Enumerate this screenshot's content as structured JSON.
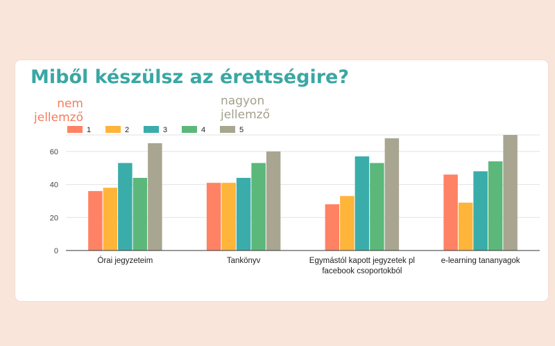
{
  "header": {
    "title": "Miből készülsz az érettségire?",
    "note_low": [
      "nem",
      "jellemző"
    ],
    "note_high": [
      "nagyon",
      "jellemző"
    ]
  },
  "chart_data": {
    "type": "bar",
    "title": "Miből készülsz az érettségire?",
    "categories": [
      [
        "Órai jegyzeteim"
      ],
      [
        "Tankönyv"
      ],
      [
        "Egymástól kapott jegyzetek pl",
        "facebook csoportokból"
      ],
      [
        "e-learning tananyagok"
      ]
    ],
    "series": [
      {
        "name": "1",
        "color": "#ff8264",
        "values": [
          36,
          41,
          28,
          46
        ]
      },
      {
        "name": "2",
        "color": "#ffb43a",
        "values": [
          38,
          41,
          33,
          29
        ]
      },
      {
        "name": "3",
        "color": "#3aadaa",
        "values": [
          53,
          44,
          57,
          48
        ]
      },
      {
        "name": "4",
        "color": "#5bb87a",
        "values": [
          44,
          53,
          53,
          54
        ]
      },
      {
        "name": "5",
        "color": "#a8a690",
        "values": [
          65,
          60,
          68,
          70
        ]
      }
    ],
    "yticks": [
      0,
      20,
      40,
      60
    ],
    "ylim": [
      0,
      70
    ],
    "legend": "top-left",
    "grid": true,
    "xlabel": "",
    "ylabel": ""
  }
}
